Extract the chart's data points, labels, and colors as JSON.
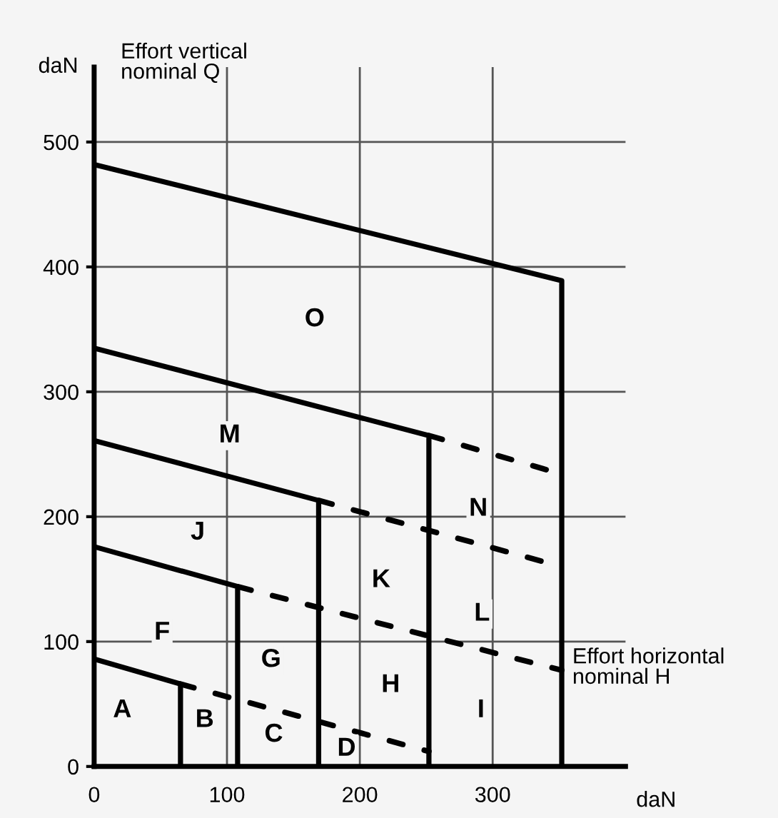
{
  "chart_data": {
    "type": "line",
    "xlabel": "daN",
    "ylabel": "daN",
    "xlim": [
      0,
      400
    ],
    "ylim": [
      0,
      560
    ],
    "xticks": [
      0,
      100,
      200,
      300
    ],
    "yticks": [
      0,
      100,
      200,
      300,
      400,
      500
    ],
    "grid": true,
    "line_style": "solid",
    "marker": "none",
    "series": [
      {
        "color": "#000000",
        "x": [
          0,
          352,
          352
        ],
        "values": [
          482,
          389,
          0
        ]
      },
      {
        "color": "#000000",
        "x": [
          0,
          252,
          252
        ],
        "values": [
          335,
          265,
          0
        ]
      },
      {
        "color": "#000000",
        "x": [
          0,
          169,
          169
        ],
        "values": [
          261,
          213,
          0
        ]
      },
      {
        "color": "#000000",
        "x": [
          0,
          108,
          108
        ],
        "values": [
          176,
          144,
          0
        ]
      },
      {
        "color": "#000000",
        "x": [
          0,
          65,
          65
        ],
        "values": [
          86,
          66,
          0
        ]
      },
      {
        "color": "#000000",
        "x": [
          252,
          352
        ],
        "values": [
          265,
          234
        ],
        "line_style": "dashed"
      },
      {
        "color": "#000000",
        "x": [
          169,
          352
        ],
        "values": [
          213,
          160
        ],
        "line_style": "dashed"
      },
      {
        "color": "#000000",
        "x": [
          108,
          352
        ],
        "values": [
          144,
          77
        ],
        "line_style": "dashed"
      },
      {
        "color": "#000000",
        "x": [
          65,
          252
        ],
        "values": [
          66,
          12
        ],
        "line_style": "dashed"
      }
    ],
    "annotations": [
      "Effort vertical\nnominal Q",
      "Effort horizontal\nnominal H",
      "A",
      "B",
      "C",
      "D",
      "F",
      "G",
      "H",
      "I",
      "J",
      "K",
      "L",
      "M",
      "N",
      "O"
    ]
  }
}
